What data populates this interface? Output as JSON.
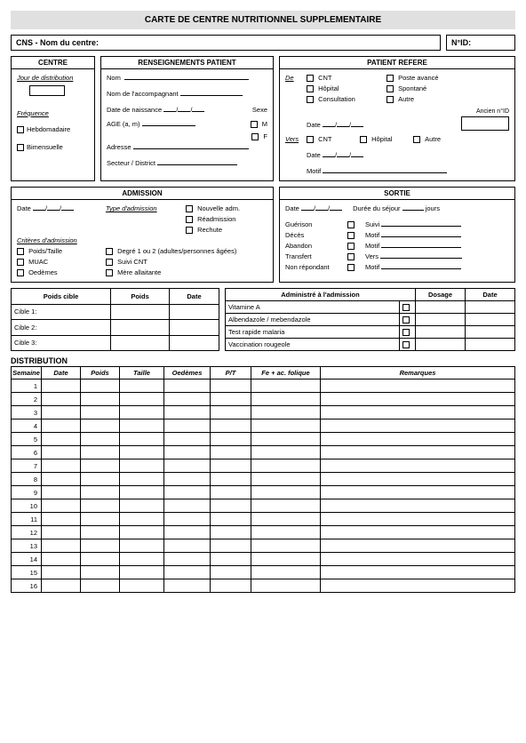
{
  "title": "CARTE DE CENTRE NUTRITIONNEL SUPPLEMENTAIRE",
  "header": {
    "centre": "CNS - Nom du centre:",
    "id": "N°ID:"
  },
  "centre": {
    "title": "CENTRE",
    "jour": "Jour de distribution",
    "freq": "Fréquence",
    "hebdo": "Hebdomadaire",
    "bimen": "Bimensuelle"
  },
  "rens": {
    "title": "RENSEIGNEMENTS PATIENT",
    "nom": "Nom",
    "acc": "Nom de l'accompagnant",
    "dob": "Date de naissance",
    "sexe": "Sexe",
    "m": "M",
    "f": "F",
    "age": "AGE (a, m)",
    "adresse": "Adresse",
    "secteur": "Secteur / District"
  },
  "refere": {
    "title": "PATIENT REFERE",
    "de": "De",
    "cnt": "CNT",
    "hopital": "Hôpital",
    "consult": "Consultation",
    "poste": "Poste avancé",
    "spontane": "Spontané",
    "autre": "Autre",
    "ancien": "Ancien n°ID",
    "date": "Date",
    "vers": "Vers",
    "motif": "Motif"
  },
  "adm": {
    "title": "ADMISSION",
    "date": "Date",
    "type": "Type d'admission",
    "nouv": "Nouvelle adm.",
    "readm": "Réadmission",
    "rechute": "Rechute",
    "crit": "Critères d'admission",
    "pt": "Poids/Taille",
    "muac": "MUAC",
    "oed": "Oedèmes",
    "degre": "Degré 1 ou 2 (adultes/personnes âgées)",
    "suivi": "Suivi CNT",
    "mere": "Mère allaitante"
  },
  "sortie": {
    "title": "SORTIE",
    "date": "Date",
    "duree": "Durée du séjour",
    "jours": "jours",
    "guer": "Guérison",
    "deces": "Décès",
    "aband": "Abandon",
    "trans": "Transfert",
    "nonrep": "Non répondant",
    "suivi": "Suivi",
    "motif": "Motif",
    "vers": "Vers"
  },
  "poids": {
    "h1": "Poids cible",
    "h2": "Poids",
    "h3": "Date",
    "r1": "Cible 1:",
    "r2": "Cible 2:",
    "r3": "Cible 3:"
  },
  "admin": {
    "h1": "Administré à l'admission",
    "h2": "Dosage",
    "h3": "Date",
    "r1": "Vitamine A",
    "r2": "Albendazole / mebendazole",
    "r3": "Test rapide malaria",
    "r4": "Vaccination rougeole"
  },
  "dist": {
    "title": "DISTRIBUTION",
    "h": [
      "Semaine",
      "Date",
      "Poids",
      "Taille",
      "Oedèmes",
      "P/T",
      "Fe + ac. folique",
      "Remarques"
    ],
    "rows": 16
  }
}
